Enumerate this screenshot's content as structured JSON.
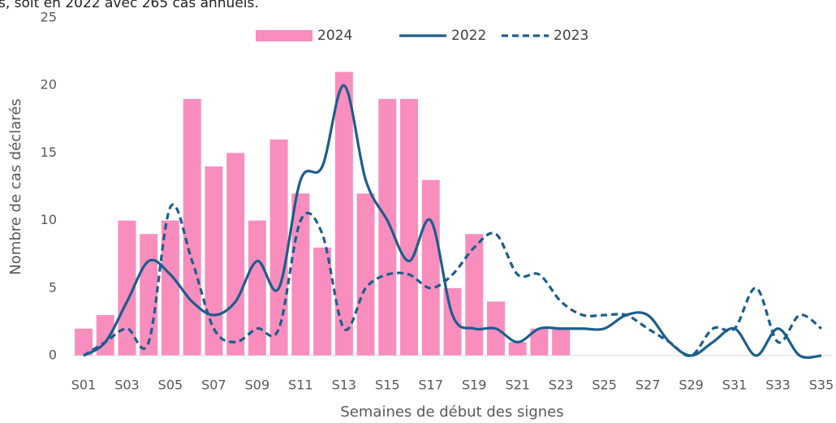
{
  "chart_data": {
    "type": "bar",
    "title": "s, soit en 2022  avec 265 cas annuels.",
    "y_label": "Nombre de cas déclarés",
    "x_label": "Semaines de début des signes",
    "categories": [
      "S01",
      null,
      "S03",
      null,
      "S05",
      null,
      "S07",
      null,
      "S09",
      null,
      "S11",
      null,
      "S13",
      null,
      "S15",
      null,
      "S17",
      null,
      "S19",
      null,
      "S21",
      null,
      "S23",
      null,
      "S25",
      null,
      "S27",
      null,
      "S29",
      null,
      "S31",
      null,
      "S33",
      null,
      "S35"
    ],
    "ylim": [
      0,
      25
    ],
    "yticks": [
      0,
      5,
      10,
      15,
      20,
      25
    ],
    "grid": false,
    "legend": "top",
    "series": [
      {
        "name": "2024",
        "type": "bar",
        "color": "#f98dbe",
        "values": [
          2,
          3,
          10,
          9,
          10,
          19,
          14,
          15,
          10,
          16,
          12,
          8,
          21,
          12,
          19,
          19,
          13,
          5,
          9,
          4,
          1,
          2,
          2,
          null,
          null,
          null,
          null,
          null,
          null,
          null,
          null,
          null,
          null,
          null,
          null
        ]
      },
      {
        "name": "2022",
        "type": "line",
        "dashed": false,
        "color": "#1b5e8c",
        "values": [
          0,
          1,
          4,
          7,
          6,
          4,
          3,
          4,
          7,
          5,
          13,
          14,
          20,
          13,
          10,
          7,
          10,
          3,
          2,
          2,
          1,
          2,
          2,
          2,
          2,
          3,
          3,
          1,
          0,
          1,
          2,
          0,
          2,
          0,
          0
        ]
      },
      {
        "name": "2023",
        "type": "line",
        "dashed": true,
        "color": "#1b5e8c",
        "values": [
          0,
          1,
          2,
          1,
          11,
          7,
          2,
          1,
          2,
          2,
          10,
          9,
          2,
          5,
          6,
          6,
          5,
          6,
          8,
          9,
          6,
          6,
          4,
          3,
          3,
          3,
          2,
          1,
          0,
          2,
          2,
          5,
          1,
          3,
          2
        ]
      }
    ]
  }
}
